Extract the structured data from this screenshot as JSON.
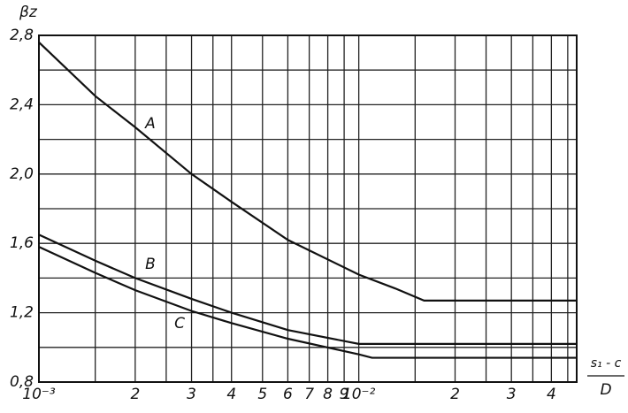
{
  "chart_data": {
    "type": "line",
    "ylabel": "βz",
    "xlabel_num": "s₁ - c",
    "xlabel_den": "D",
    "xscale": "log",
    "xlim": [
      0.001,
      0.048
    ],
    "ylim": [
      0.8,
      2.8
    ],
    "xticks": [
      {
        "value": 0.001,
        "label": "10⁻³"
      },
      {
        "value": 0.002,
        "label": "2"
      },
      {
        "value": 0.003,
        "label": "3"
      },
      {
        "value": 0.004,
        "label": "4"
      },
      {
        "value": 0.005,
        "label": "5"
      },
      {
        "value": 0.006,
        "label": "6"
      },
      {
        "value": 0.007,
        "label": "7"
      },
      {
        "value": 0.008,
        "label": "8"
      },
      {
        "value": 0.009,
        "label": "9"
      },
      {
        "value": 0.01,
        "label": "10⁻²"
      },
      {
        "value": 0.02,
        "label": "2"
      },
      {
        "value": 0.03,
        "label": "3"
      },
      {
        "value": 0.04,
        "label": "4"
      }
    ],
    "xgrid_minor": [
      0.0015,
      0.0025,
      0.0035,
      0.015,
      0.025,
      0.035,
      0.045
    ],
    "yticks": [
      {
        "value": 0.8,
        "label": "0,8"
      },
      {
        "value": 1.2,
        "label": "1,2"
      },
      {
        "value": 1.6,
        "label": "1,6"
      },
      {
        "value": 2.0,
        "label": "2,0"
      },
      {
        "value": 2.4,
        "label": "2,4"
      },
      {
        "value": 2.8,
        "label": "2,8"
      }
    ],
    "ygrid_minor": [
      1.0,
      1.4,
      1.8,
      2.2,
      2.6
    ],
    "grid": true,
    "color": "#111111",
    "series": [
      {
        "name": "A",
        "color": "#111111",
        "x": [
          0.001,
          0.0015,
          0.002,
          0.003,
          0.004,
          0.006,
          0.01,
          0.013,
          0.016,
          0.048
        ],
        "values": [
          2.76,
          2.45,
          2.27,
          2.0,
          1.84,
          1.62,
          1.42,
          1.34,
          1.27,
          1.27
        ]
      },
      {
        "name": "B",
        "color": "#111111",
        "x": [
          0.001,
          0.0015,
          0.002,
          0.003,
          0.004,
          0.006,
          0.01,
          0.048
        ],
        "values": [
          1.65,
          1.5,
          1.4,
          1.28,
          1.2,
          1.1,
          1.02,
          1.02
        ]
      },
      {
        "name": "C",
        "color": "#111111",
        "x": [
          0.001,
          0.0015,
          0.002,
          0.003,
          0.004,
          0.006,
          0.01,
          0.011,
          0.048
        ],
        "values": [
          1.58,
          1.43,
          1.33,
          1.21,
          1.14,
          1.05,
          0.96,
          0.94,
          0.94
        ]
      }
    ]
  }
}
